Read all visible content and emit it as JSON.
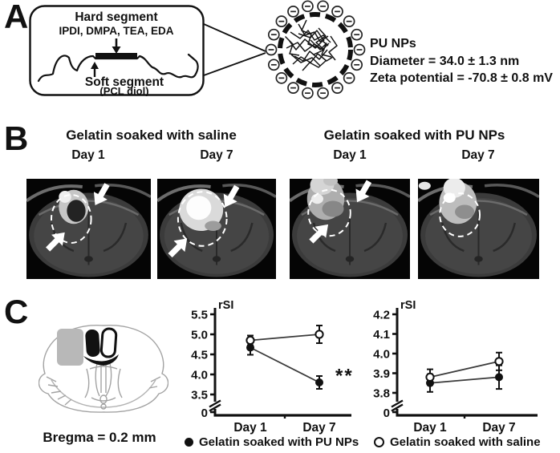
{
  "figure": {
    "panelA": {
      "label": "A",
      "hard_segment_title": "Hard segment",
      "hard_segment_components": "IPDI, DMPA, TEA, EDA",
      "soft_segment_title": "Soft segment",
      "soft_segment_sub": "(PCL diol)",
      "np_title": "PU NPs",
      "np_diameter": "Diameter = 34.0 ± 1.3 nm",
      "np_zeta": "Zeta potential = -70.8 ± 0.8 mV"
    },
    "panelB": {
      "label": "B",
      "group_saline_title": "Gelatin soaked with saline",
      "group_punps_title": "Gelatin soaked with PU NPs",
      "day_labels": [
        "Day 1",
        "Day 7",
        "Day 1",
        "Day 7"
      ]
    },
    "panelC": {
      "label": "C",
      "bregma_label": "Bregma = 0.2 mm",
      "legend": [
        {
          "marker": "filled-circle",
          "label": "Gelatin soaked with PU NPs"
        },
        {
          "marker": "open-circle",
          "label": "Gelatin soaked with saline"
        }
      ]
    }
  },
  "chart_data": [
    {
      "type": "line",
      "title": "",
      "ylabel": "rSI",
      "xlabel": "",
      "categories": [
        "Day 1",
        "Day 7"
      ],
      "yticks": [
        3.5,
        4.0,
        4.5,
        5.0,
        5.5
      ],
      "ylim": [
        3.5,
        5.5
      ],
      "axis_break": true,
      "axis_break_zero_label": "0",
      "legend_position": "below",
      "grid": false,
      "series": [
        {
          "name": "Gelatin soaked with PU NPs",
          "marker": "filled",
          "values": [
            4.67,
            3.8
          ],
          "errors": [
            0.18,
            0.16
          ]
        },
        {
          "name": "Gelatin soaked with saline",
          "marker": "open",
          "values": [
            4.85,
            5.0
          ],
          "errors": [
            0.12,
            0.22
          ]
        }
      ],
      "annotation": {
        "text": "**",
        "category_index": 1,
        "value": 3.95
      }
    },
    {
      "type": "line",
      "title": "",
      "ylabel": "rSI",
      "xlabel": "",
      "categories": [
        "Day 1",
        "Day 7"
      ],
      "yticks": [
        3.8,
        3.9,
        4.0,
        4.1,
        4.2
      ],
      "ylim": [
        3.8,
        4.2
      ],
      "axis_break": true,
      "axis_break_zero_label": "0",
      "legend_position": "below",
      "grid": false,
      "series": [
        {
          "name": "Gelatin soaked with PU NPs",
          "marker": "filled",
          "values": [
            3.85,
            3.88
          ],
          "errors": [
            0.045,
            0.06
          ]
        },
        {
          "name": "Gelatin soaked with saline",
          "marker": "open",
          "values": [
            3.88,
            3.96
          ],
          "errors": [
            0.04,
            0.045
          ]
        }
      ]
    }
  ]
}
